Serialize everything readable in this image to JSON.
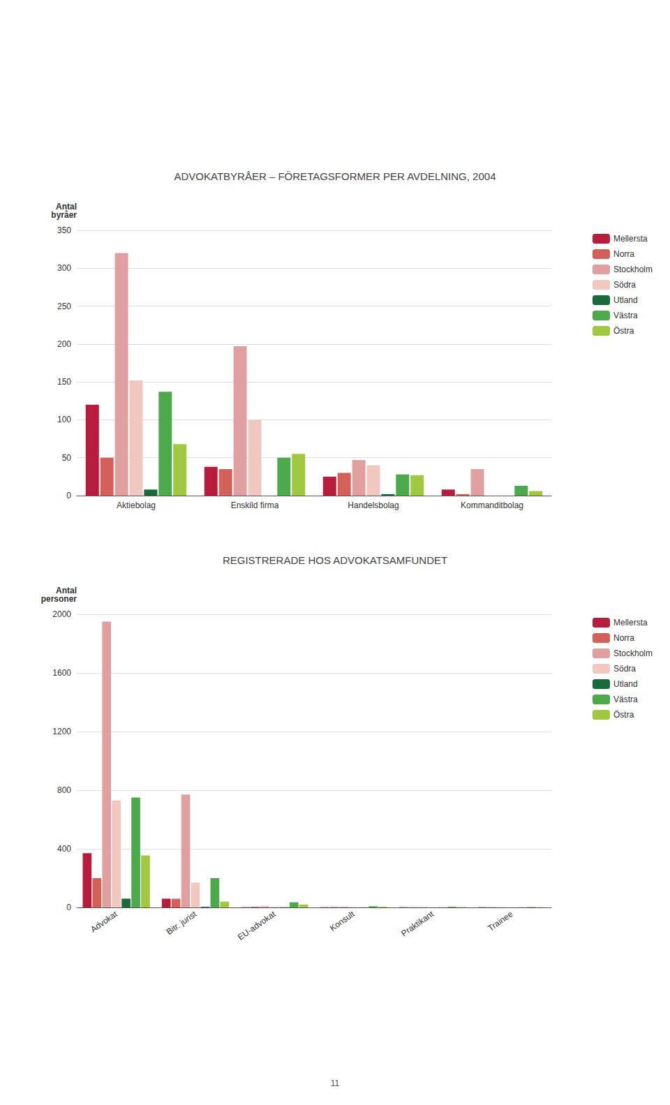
{
  "chart_data": [
    {
      "type": "bar",
      "title": "ADVOKATBYRÅER – FÖRETAGSFORMER PER AVDELNING, 2004",
      "y_label": "Antal\nbyråer",
      "categories": [
        "Aktiebolag",
        "Enskild firma",
        "Handelsbolag",
        "Kommanditbolag"
      ],
      "series": [
        {
          "name": "Mellersta",
          "color": "#b81c3c",
          "values": [
            120,
            38,
            25,
            8
          ]
        },
        {
          "name": "Norra",
          "color": "#d4605a",
          "values": [
            50,
            35,
            30,
            2
          ]
        },
        {
          "name": "Stockholm",
          "color": "#e0a0a0",
          "values": [
            320,
            197,
            47,
            35
          ]
        },
        {
          "name": "Södra",
          "color": "#f0c8c0",
          "values": [
            152,
            100,
            40,
            0
          ]
        },
        {
          "name": "Utland",
          "color": "#1a6b3c",
          "values": [
            8,
            0,
            2,
            0
          ]
        },
        {
          "name": "Västra",
          "color": "#4caa4c",
          "values": [
            137,
            50,
            28,
            13
          ]
        },
        {
          "name": "Östra",
          "color": "#a0c840",
          "values": [
            68,
            55,
            27,
            6
          ]
        }
      ],
      "ylim": [
        0,
        350
      ],
      "yticks": [
        0,
        50,
        100,
        150,
        200,
        250,
        300,
        350
      ],
      "grid": true,
      "legend": "upper right"
    },
    {
      "type": "bar",
      "title": "REGISTRERADE HOS ADVOKATSAMFUNDET",
      "y_label": "Antal\npersoner",
      "categories": [
        "Advokat",
        "Bitr. jurist",
        "EU-advokat",
        "Konsult",
        "Praktikant",
        "Trainee"
      ],
      "series": [
        {
          "name": "Mellersta",
          "color": "#b81c3c",
          "values": [
            370,
            60,
            2,
            2,
            2,
            2
          ]
        },
        {
          "name": "Norra",
          "color": "#d4605a",
          "values": [
            200,
            60,
            5,
            3,
            2,
            2
          ]
        },
        {
          "name": "Stockholm",
          "color": "#e0a0a0",
          "values": [
            1950,
            770,
            8,
            5,
            3,
            2
          ]
        },
        {
          "name": "Södra",
          "color": "#f0c8c0",
          "values": [
            730,
            170,
            5,
            3,
            2,
            2
          ]
        },
        {
          "name": "Utland",
          "color": "#1a6b3c",
          "values": [
            60,
            5,
            2,
            1,
            1,
            1
          ]
        },
        {
          "name": "Västra",
          "color": "#4caa4c",
          "values": [
            750,
            200,
            35,
            8,
            5,
            3
          ]
        },
        {
          "name": "Östra",
          "color": "#a0c840",
          "values": [
            355,
            40,
            20,
            5,
            3,
            2
          ]
        }
      ],
      "ylim": [
        0,
        2000
      ],
      "yticks": [
        0,
        400,
        800,
        1200,
        1600,
        2000
      ],
      "grid": true,
      "legend": "upper right",
      "annotations": [
        "11"
      ]
    }
  ]
}
